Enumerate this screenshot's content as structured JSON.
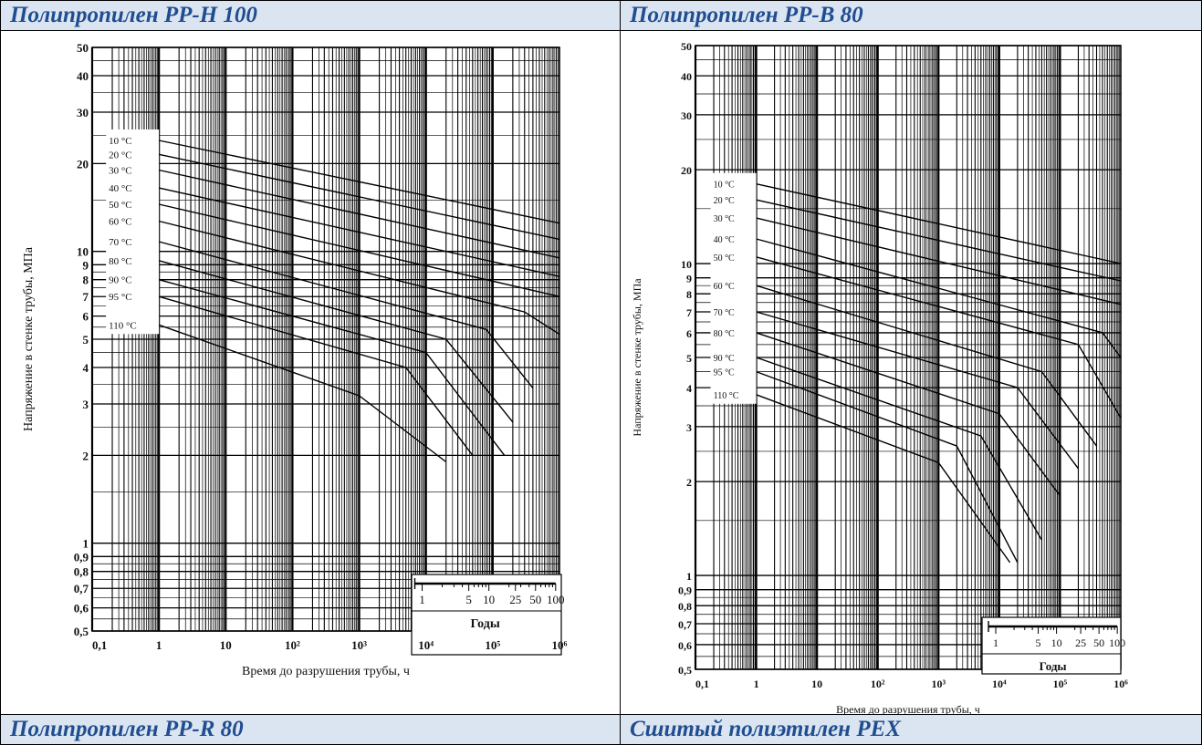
{
  "headers": {
    "top_left": "Полипропилен PP-H 100",
    "top_right": "Полипропилен PP-B 80",
    "bottom_left": "Полипропилен PP-R 80",
    "bottom_right": "Сшитый полиэтилен PEX"
  },
  "chart_data": [
    {
      "type": "line",
      "ylabel": "Напряжение в стенке трубы, МПа",
      "xlabel": "Время до разрушения трубы, ч",
      "x_scale": "log",
      "y_scale": "log",
      "xlim": [
        0.1,
        1000000
      ],
      "ylim": [
        0.5,
        50
      ],
      "x_ticks": [
        {
          "v": 0.1,
          "label": "0,1"
        },
        {
          "v": 1,
          "label": "1"
        },
        {
          "v": 10,
          "label": "10"
        },
        {
          "v": 100,
          "label": "10²"
        },
        {
          "v": 1000,
          "label": "10³"
        },
        {
          "v": 10000,
          "label": "10⁴"
        },
        {
          "v": 100000,
          "label": "10⁵"
        },
        {
          "v": 1000000,
          "label": "10⁶"
        }
      ],
      "y_ticks": [
        {
          "v": 0.5,
          "label": "0,5"
        },
        {
          "v": 0.6,
          "label": "0,6"
        },
        {
          "v": 0.7,
          "label": "0,7"
        },
        {
          "v": 0.8,
          "label": "0,8"
        },
        {
          "v": 0.9,
          "label": "0,9"
        },
        {
          "v": 1,
          "label": "1"
        },
        {
          "v": 2,
          "label": "2"
        },
        {
          "v": 3,
          "label": "3"
        },
        {
          "v": 4,
          "label": "4"
        },
        {
          "v": 5,
          "label": "5"
        },
        {
          "v": 6,
          "label": "6"
        },
        {
          "v": 7,
          "label": "7"
        },
        {
          "v": 8,
          "label": "8"
        },
        {
          "v": 9,
          "label": "9"
        },
        {
          "v": 10,
          "label": "10"
        },
        {
          "v": 20,
          "label": "20"
        },
        {
          "v": 30,
          "label": "30"
        },
        {
          "v": 40,
          "label": "40"
        },
        {
          "v": 50,
          "label": "50"
        }
      ],
      "years_axis": {
        "title": "Годы",
        "ticks": [
          {
            "years": 1,
            "label": "1"
          },
          {
            "years": 5,
            "label": "5"
          },
          {
            "years": 10,
            "label": "10"
          },
          {
            "years": 25,
            "label": "25"
          },
          {
            "years": 50,
            "label": "50"
          },
          {
            "years": 100,
            "label": "100"
          }
        ]
      },
      "series": [
        {
          "name": "10 °C",
          "points": [
            [
              1,
              24
            ],
            [
              1000000,
              12.5
            ]
          ]
        },
        {
          "name": "20 °C",
          "points": [
            [
              1,
              21.5
            ],
            [
              1000000,
              11
            ]
          ]
        },
        {
          "name": "30 °C",
          "points": [
            [
              1,
              19
            ],
            [
              1000000,
              9.5
            ]
          ]
        },
        {
          "name": "40 °C",
          "points": [
            [
              1,
              16.5
            ],
            [
              1000000,
              8.2
            ]
          ]
        },
        {
          "name": "50 °C",
          "points": [
            [
              1,
              14.5
            ],
            [
              1000000,
              7
            ]
          ]
        },
        {
          "name": "60 °C",
          "points": [
            [
              1,
              12.7
            ],
            [
              300000,
              6.2
            ],
            [
              1000000,
              5.2
            ]
          ]
        },
        {
          "name": "70 °C",
          "points": [
            [
              1,
              10.8
            ],
            [
              80000,
              5.4
            ],
            [
              400000,
              3.4
            ]
          ]
        },
        {
          "name": "80 °C",
          "points": [
            [
              1,
              9.3
            ],
            [
              20000,
              5
            ],
            [
              200000,
              2.6
            ]
          ]
        },
        {
          "name": "90 °C",
          "points": [
            [
              1,
              8
            ],
            [
              10000,
              4.5
            ],
            [
              150000,
              2
            ]
          ]
        },
        {
          "name": "95 °C",
          "points": [
            [
              1,
              7
            ],
            [
              5000,
              4
            ],
            [
              50000,
              2
            ]
          ]
        },
        {
          "name": "110 °C",
          "points": [
            [
              1,
              5.6
            ],
            [
              1000,
              3.2
            ],
            [
              20000,
              1.9
            ]
          ]
        }
      ]
    },
    {
      "type": "line",
      "ylabel": "Напряжение в стенке трубы, МПа",
      "xlabel": "Время до разрушения трубы, ч",
      "x_scale": "log",
      "y_scale": "log",
      "xlim": [
        0.1,
        1000000
      ],
      "ylim": [
        0.5,
        50
      ],
      "x_ticks": [
        {
          "v": 0.1,
          "label": "0,1"
        },
        {
          "v": 1,
          "label": "1"
        },
        {
          "v": 10,
          "label": "10"
        },
        {
          "v": 100,
          "label": "10²"
        },
        {
          "v": 1000,
          "label": "10³"
        },
        {
          "v": 10000,
          "label": "10⁴"
        },
        {
          "v": 100000,
          "label": "10⁵"
        },
        {
          "v": 1000000,
          "label": "10⁶"
        }
      ],
      "y_ticks": [
        {
          "v": 0.5,
          "label": "0,5"
        },
        {
          "v": 0.6,
          "label": "0,6"
        },
        {
          "v": 0.7,
          "label": "0,7"
        },
        {
          "v": 0.8,
          "label": "0,8"
        },
        {
          "v": 0.9,
          "label": "0,9"
        },
        {
          "v": 1,
          "label": "1"
        },
        {
          "v": 2,
          "label": "2"
        },
        {
          "v": 3,
          "label": "3"
        },
        {
          "v": 4,
          "label": "4"
        },
        {
          "v": 5,
          "label": "5"
        },
        {
          "v": 6,
          "label": "6"
        },
        {
          "v": 7,
          "label": "7"
        },
        {
          "v": 8,
          "label": "8"
        },
        {
          "v": 9,
          "label": "9"
        },
        {
          "v": 10,
          "label": "10"
        },
        {
          "v": 20,
          "label": "20"
        },
        {
          "v": 30,
          "label": "30"
        },
        {
          "v": 40,
          "label": "40"
        },
        {
          "v": 50,
          "label": "50"
        }
      ],
      "years_axis": {
        "title": "Годы",
        "ticks": [
          {
            "years": 1,
            "label": "1"
          },
          {
            "years": 5,
            "label": "5"
          },
          {
            "years": 10,
            "label": "10"
          },
          {
            "years": 25,
            "label": "25"
          },
          {
            "years": 50,
            "label": "50"
          },
          {
            "years": 100,
            "label": "100"
          }
        ]
      },
      "series": [
        {
          "name": "10 °C",
          "points": [
            [
              1,
              18
            ],
            [
              1000000,
              10
            ]
          ]
        },
        {
          "name": "20 °C",
          "points": [
            [
              1,
              16
            ],
            [
              1000000,
              8.8
            ]
          ]
        },
        {
          "name": "30 °C",
          "points": [
            [
              1,
              14
            ],
            [
              1000000,
              7.4
            ]
          ]
        },
        {
          "name": "40 °C",
          "points": [
            [
              1,
              12
            ],
            [
              500000,
              6
            ],
            [
              1000000,
              5
            ]
          ]
        },
        {
          "name": "50 °C",
          "points": [
            [
              1,
              10.5
            ],
            [
              200000,
              5.5
            ],
            [
              1000000,
              3.2
            ]
          ]
        },
        {
          "name": "60 °C",
          "points": [
            [
              1,
              8.5
            ],
            [
              50000,
              4.5
            ],
            [
              400000,
              2.6
            ]
          ]
        },
        {
          "name": "70 °C",
          "points": [
            [
              1,
              7
            ],
            [
              20000,
              4
            ],
            [
              200000,
              2.2
            ]
          ]
        },
        {
          "name": "80 °C",
          "points": [
            [
              1,
              6
            ],
            [
              10000,
              3.3
            ],
            [
              100000,
              1.8
            ]
          ]
        },
        {
          "name": "90 °C",
          "points": [
            [
              1,
              5
            ],
            [
              5000,
              2.8
            ],
            [
              50000,
              1.3
            ]
          ]
        },
        {
          "name": "95 °C",
          "points": [
            [
              1,
              4.5
            ],
            [
              2000,
              2.6
            ],
            [
              20000,
              1.1
            ]
          ]
        },
        {
          "name": "110 °C",
          "points": [
            [
              1,
              3.8
            ],
            [
              1000,
              2.3
            ],
            [
              15000,
              1.1
            ]
          ]
        }
      ]
    }
  ]
}
